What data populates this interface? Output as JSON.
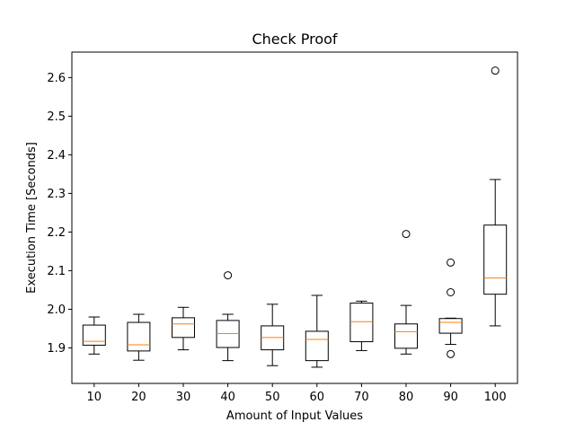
{
  "chart_data": {
    "type": "boxplot",
    "title": "Check Proof",
    "xlabel": "Amount of Input Values",
    "ylabel": "Execution Time [Seconds]",
    "ylim": [
      1.808,
      2.666
    ],
    "yticks": [
      "1.9",
      "2.0",
      "2.1",
      "2.2",
      "2.3",
      "2.4",
      "2.5",
      "2.6"
    ],
    "grid": false,
    "legend": "none",
    "colors": {
      "box": "#000000",
      "median": "#ff7f0e",
      "flier": "#000000"
    },
    "categories": [
      "10",
      "20",
      "30",
      "40",
      "50",
      "60",
      "70",
      "80",
      "90",
      "100"
    ],
    "boxes": [
      {
        "whislo": 1.884,
        "q1": 1.907,
        "med": 1.917,
        "q3": 1.959,
        "whishi": 1.98,
        "fliers": []
      },
      {
        "whislo": 1.868,
        "q1": 1.892,
        "med": 1.908,
        "q3": 1.966,
        "whishi": 1.987,
        "fliers": []
      },
      {
        "whislo": 1.895,
        "q1": 1.927,
        "med": 1.962,
        "q3": 1.978,
        "whishi": 2.005,
        "fliers": []
      },
      {
        "whislo": 1.867,
        "q1": 1.901,
        "med": 1.937,
        "q3": 1.971,
        "whishi": 1.987,
        "fliers": [
          2.088
        ]
      },
      {
        "whislo": 1.854,
        "q1": 1.895,
        "med": 1.927,
        "q3": 1.957,
        "whishi": 2.013,
        "fliers": []
      },
      {
        "whislo": 1.85,
        "q1": 1.867,
        "med": 1.922,
        "q3": 1.943,
        "whishi": 2.036,
        "fliers": []
      },
      {
        "whislo": 1.893,
        "q1": 1.916,
        "med": 1.968,
        "q3": 2.016,
        "whishi": 2.021,
        "fliers": []
      },
      {
        "whislo": 1.884,
        "q1": 1.899,
        "med": 1.942,
        "q3": 1.962,
        "whishi": 2.01,
        "fliers": [
          2.195
        ]
      },
      {
        "whislo": 1.909,
        "q1": 1.938,
        "med": 1.966,
        "q3": 1.976,
        "whishi": 1.977,
        "fliers": [
          1.884,
          2.044,
          2.121
        ]
      },
      {
        "whislo": 1.957,
        "q1": 2.039,
        "med": 2.081,
        "q3": 2.218,
        "whishi": 2.336,
        "fliers": [
          2.618
        ]
      }
    ]
  }
}
